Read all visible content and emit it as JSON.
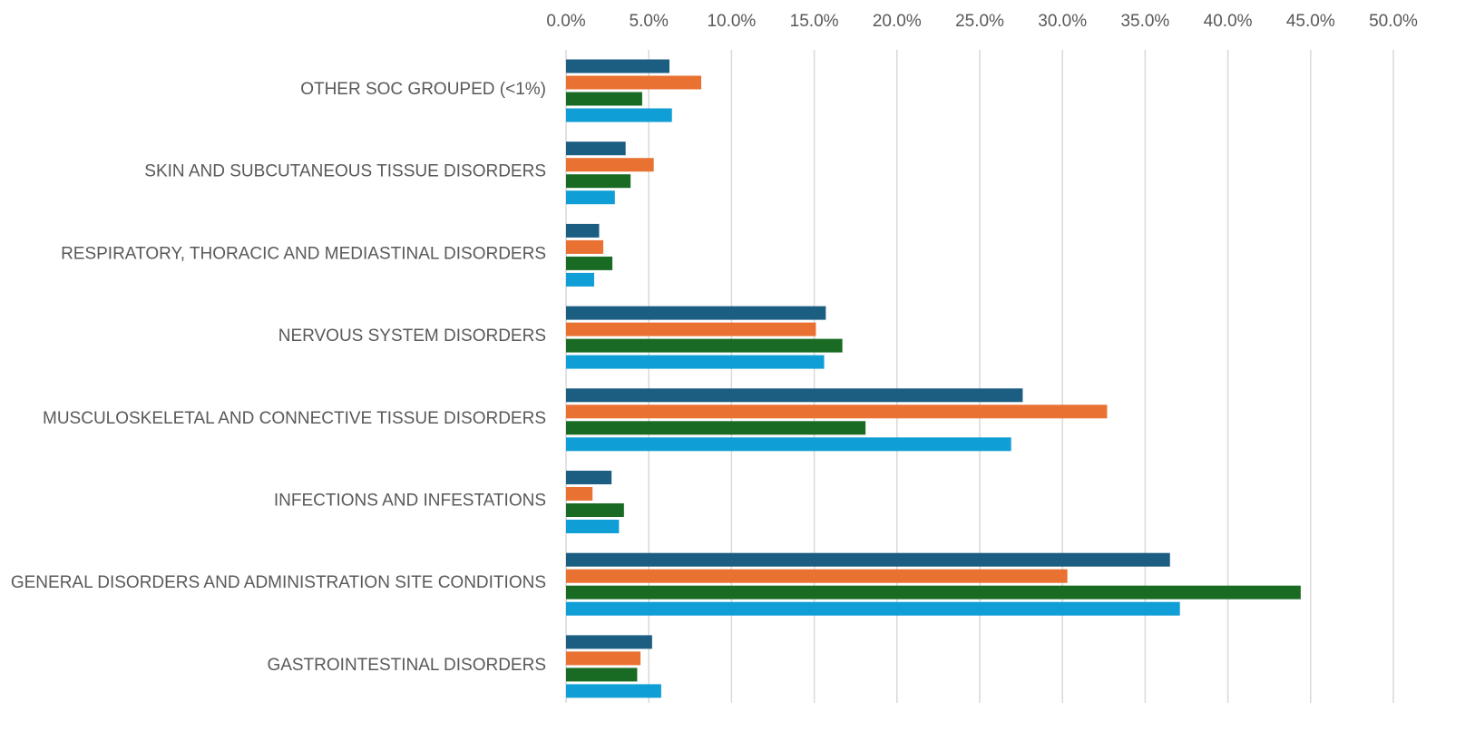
{
  "chart_data": {
    "type": "hbar",
    "categories": [
      "OTHER SOC GROUPED (<1%)",
      "SKIN AND SUBCUTANEOUS TISSUE DISORDERS",
      "RESPIRATORY, THORACIC AND MEDIASTINAL DISORDERS",
      "NERVOUS SYSTEM DISORDERS",
      "MUSCULOSKELETAL AND CONNECTIVE TISSUE DISORDERS",
      "INFECTIONS AND INFESTATIONS",
      "GENERAL DISORDERS AND ADMINISTRATION SITE CONDITIONS",
      "GASTROINTESTINAL DISORDERS"
    ],
    "series": [
      {
        "color": "#1b5e82",
        "values": [
          6.25,
          3.6,
          2.0,
          15.7,
          27.6,
          2.75,
          36.5,
          5.2
        ]
      },
      {
        "color": "#e97132",
        "values": [
          8.17,
          5.3,
          2.25,
          15.1,
          32.7,
          1.6,
          30.3,
          4.5
        ]
      },
      {
        "color": "#196b24",
        "values": [
          4.6,
          3.9,
          2.8,
          16.7,
          18.1,
          3.5,
          44.4,
          4.3
        ]
      },
      {
        "color": "#0f9ed5",
        "values": [
          6.4,
          2.95,
          1.7,
          15.6,
          26.9,
          3.2,
          37.1,
          5.75
        ]
      }
    ],
    "xlim": [
      0,
      50
    ],
    "xticks": [
      {
        "value": 0,
        "label": "0.0%"
      },
      {
        "value": 5,
        "label": "5.0%"
      },
      {
        "value": 10,
        "label": "10.0%"
      },
      {
        "value": 15,
        "label": "15.0%"
      },
      {
        "value": 20,
        "label": "20.0%"
      },
      {
        "value": 25,
        "label": "25.0%"
      },
      {
        "value": 30,
        "label": "30.0%"
      },
      {
        "value": 35,
        "label": "35.0%"
      },
      {
        "value": 40,
        "label": "40.0%"
      },
      {
        "value": 45,
        "label": "45.0%"
      },
      {
        "value": 50,
        "label": "50.0%"
      }
    ],
    "grid": true
  }
}
